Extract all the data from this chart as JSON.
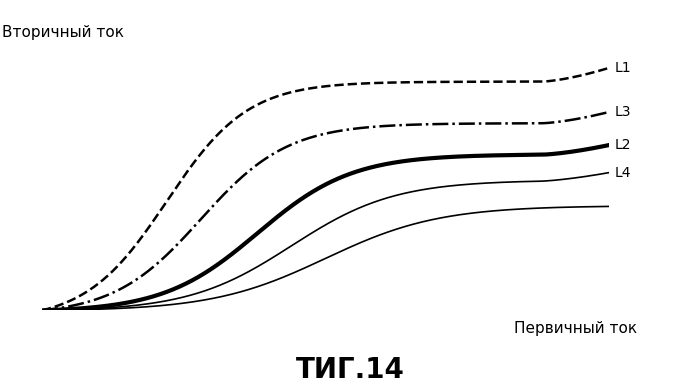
{
  "title": "ΤИГ.14",
  "ylabel": "Вторичный ток",
  "xlabel": "Первичный ток",
  "background_color": "#ffffff",
  "curves": [
    {
      "label": "L1",
      "style": "dashed",
      "color": "#000000",
      "linewidth": 1.8,
      "saturation_level": 0.88,
      "inflection_x": 0.22,
      "steepness": 14,
      "uptick": true
    },
    {
      "label": "L3",
      "style": "dashdot",
      "color": "#000000",
      "linewidth": 1.8,
      "saturation_level": 0.72,
      "inflection_x": 0.28,
      "steepness": 13,
      "uptick": true
    },
    {
      "label": "L2",
      "style": "solid",
      "color": "#000000",
      "linewidth": 3.0,
      "saturation_level": 0.6,
      "inflection_x": 0.38,
      "steepness": 12,
      "uptick": true
    },
    {
      "label": "L4",
      "style": "solid",
      "color": "#000000",
      "linewidth": 1.2,
      "saturation_level": 0.5,
      "inflection_x": 0.44,
      "steepness": 11,
      "uptick": true
    },
    {
      "label": "",
      "style": "solid",
      "color": "#000000",
      "linewidth": 1.2,
      "saturation_level": 0.4,
      "inflection_x": 0.5,
      "steepness": 10,
      "uptick": false
    }
  ],
  "xlim": [
    0,
    1.0
  ],
  "ylim": [
    0,
    1.0
  ],
  "label_fontsize": 10,
  "title_fontsize": 20,
  "axis_label_fontsize": 11
}
